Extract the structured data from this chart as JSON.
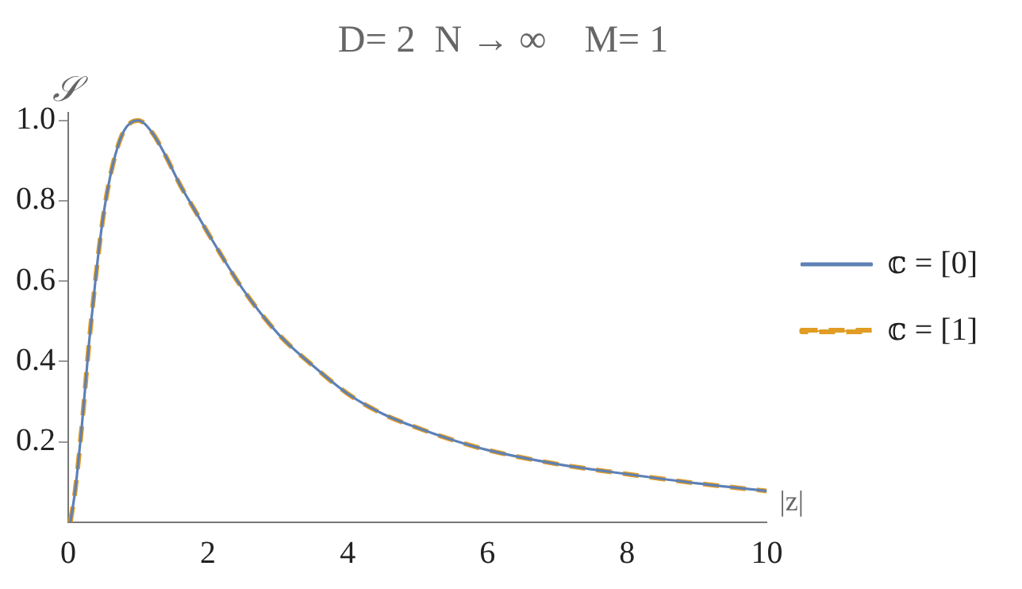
{
  "chart_data": {
    "type": "line",
    "title": "D= 2  N → ∞    M= 1",
    "xlabel": "|z|",
    "ylabel": "𝒮",
    "x": [
      0.03,
      0.1,
      0.2,
      0.3,
      0.4,
      0.5,
      0.6,
      0.7,
      0.8,
      0.9,
      1.0,
      1.2,
      1.4,
      1.6,
      1.8,
      2.0,
      2.5,
      3.0,
      3.5,
      4.0,
      4.5,
      5.0,
      5.5,
      6.0,
      7.0,
      8.0,
      9.0,
      10.0
    ],
    "series": [
      {
        "name": "𝕔 = [0]",
        "color": "#5e81b5",
        "line_style": "solid",
        "values": [
          0,
          0.08,
          0.25,
          0.45,
          0.62,
          0.76,
          0.86,
          0.93,
          0.975,
          0.995,
          1.0,
          0.97,
          0.91,
          0.84,
          0.78,
          0.72,
          0.58,
          0.47,
          0.39,
          0.32,
          0.27,
          0.235,
          0.205,
          0.18,
          0.145,
          0.12,
          0.097,
          0.078
        ]
      },
      {
        "name": "𝕔 = [1]",
        "color": "#e19c24",
        "line_style": "dashed",
        "values": [
          0,
          0.08,
          0.25,
          0.45,
          0.62,
          0.76,
          0.86,
          0.93,
          0.975,
          0.995,
          1.0,
          0.97,
          0.91,
          0.84,
          0.78,
          0.72,
          0.58,
          0.47,
          0.39,
          0.32,
          0.27,
          0.235,
          0.205,
          0.18,
          0.145,
          0.12,
          0.097,
          0.078
        ]
      }
    ],
    "xlim": [
      0,
      10
    ],
    "xticks": [
      0,
      2,
      4,
      6,
      8,
      10
    ],
    "ylim": [
      0,
      1.02
    ],
    "yticks": [
      0.2,
      0.4,
      0.6,
      0.8,
      {
        "value": 1,
        "label": "1.0"
      }
    ],
    "grid": false,
    "legend": "right",
    "marker": "none"
  }
}
